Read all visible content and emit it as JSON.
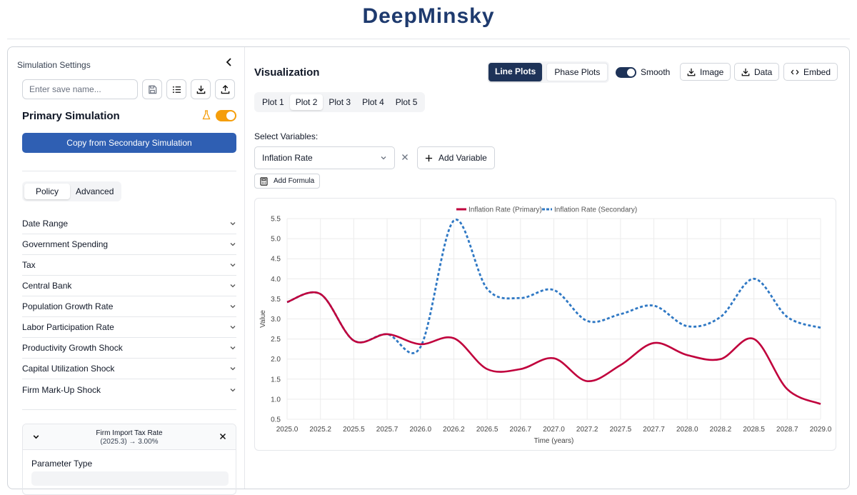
{
  "app": {
    "title": "DeepMinsky"
  },
  "sidebar": {
    "header": "Simulation Settings",
    "save_placeholder": "Enter save name...",
    "primary_title": "Primary Simulation",
    "copy_button": "Copy from Secondary Simulation",
    "tabs": [
      {
        "label": "Policy",
        "active": true
      },
      {
        "label": "Advanced",
        "active": false
      }
    ],
    "sections": [
      {
        "label": "Date Range"
      },
      {
        "label": "Government Spending"
      },
      {
        "label": "Tax"
      },
      {
        "label": "Central Bank"
      },
      {
        "label": "Population Growth Rate"
      },
      {
        "label": "Labor Participation Rate"
      },
      {
        "label": "Productivity Growth Shock"
      },
      {
        "label": "Capital Utilization Shock"
      },
      {
        "label": "Firm Mark-Up Shock"
      }
    ],
    "param_card": {
      "name": "Firm Import Tax Rate",
      "value": "(2025.3) → 3.00%",
      "type_label": "Parameter Type"
    }
  },
  "main": {
    "title": "Visualization",
    "view_tabs": [
      {
        "label": "Line Plots",
        "active": true
      },
      {
        "label": "Phase Plots",
        "active": false
      }
    ],
    "smooth_label": "Smooth",
    "smooth_on": true,
    "image_button": "Image",
    "data_button": "Data",
    "embed_button": "Embed",
    "plot_tabs": [
      {
        "label": "Plot 1",
        "active": false
      },
      {
        "label": "Plot 2",
        "active": true
      },
      {
        "label": "Plot 3",
        "active": false
      },
      {
        "label": "Plot 4",
        "active": false
      },
      {
        "label": "Plot 5",
        "active": false
      }
    ],
    "select_label": "Select Variables:",
    "selected_variable": "Inflation Rate",
    "add_variable": "Add Variable",
    "add_formula": "Add Formula"
  },
  "colors": {
    "brand": "#1e3a6e",
    "primary_series": "#c0003c",
    "secondary_series": "#2f78c4",
    "toggle_orange": "#f59e0b"
  },
  "chart_data": {
    "type": "line",
    "title": "",
    "xlabel": "Time (years)",
    "ylabel": "Value",
    "xlim": [
      2025.0,
      2029.0
    ],
    "ylim": [
      0.5,
      5.5
    ],
    "x_ticks": [
      "2025.0",
      "2025.2",
      "2025.5",
      "2025.7",
      "2026.0",
      "2026.2",
      "2026.5",
      "2026.7",
      "2027.0",
      "2027.2",
      "2027.5",
      "2027.7",
      "2028.0",
      "2028.2",
      "2028.5",
      "2028.7",
      "2029.0"
    ],
    "y_ticks": [
      "0.5",
      "1.0",
      "1.5",
      "2.0",
      "2.5",
      "3.0",
      "3.5",
      "4.0",
      "4.5",
      "5.0",
      "5.5"
    ],
    "grid": true,
    "legend_position": "top-center",
    "series": [
      {
        "name": "Inflation Rate (Primary)",
        "style": "solid",
        "color": "#c0003c",
        "x": [
          2025.0,
          2025.25,
          2025.5,
          2025.75,
          2026.0,
          2026.25,
          2026.5,
          2026.75,
          2027.0,
          2027.25,
          2027.5,
          2027.75,
          2028.0,
          2028.25,
          2028.5,
          2028.75,
          2029.0
        ],
        "y": [
          3.42,
          3.62,
          2.46,
          2.62,
          2.37,
          2.52,
          1.75,
          1.75,
          2.02,
          1.45,
          1.85,
          2.4,
          2.1,
          2.0,
          2.5,
          1.25,
          0.88
        ]
      },
      {
        "name": "Inflation Rate (Secondary)",
        "style": "dashed",
        "color": "#2f78c4",
        "x": [
          2025.0,
          2025.25,
          2025.5,
          2025.75,
          2026.0,
          2026.25,
          2026.5,
          2026.75,
          2027.0,
          2027.25,
          2027.5,
          2027.75,
          2028.0,
          2028.25,
          2028.5,
          2028.75,
          2029.0
        ],
        "y": [
          3.42,
          3.62,
          2.46,
          2.62,
          2.3,
          5.45,
          3.75,
          3.52,
          3.72,
          2.95,
          3.12,
          3.33,
          2.82,
          3.05,
          4.0,
          3.05,
          2.78
        ]
      }
    ]
  }
}
